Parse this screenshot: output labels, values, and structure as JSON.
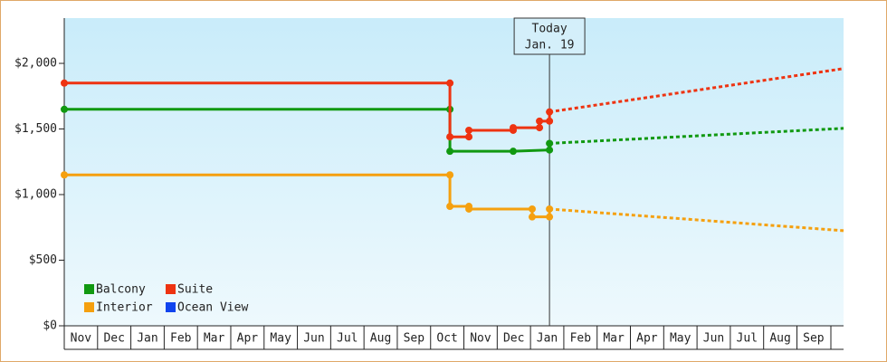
{
  "chart_data": {
    "type": "step-line",
    "annotation": {
      "x": 14.57,
      "lines": [
        "Today",
        "Jan. 19"
      ]
    },
    "xlim": [
      0,
      23.4
    ],
    "xticks": [
      {
        "value": 0,
        "label": "Nov"
      },
      {
        "value": 1,
        "label": "Dec"
      },
      {
        "value": 2,
        "label": "Jan"
      },
      {
        "value": 3,
        "label": "Feb"
      },
      {
        "value": 4,
        "label": "Mar"
      },
      {
        "value": 5,
        "label": "Apr"
      },
      {
        "value": 6,
        "label": "May"
      },
      {
        "value": 7,
        "label": "Jun"
      },
      {
        "value": 8,
        "label": "Jul"
      },
      {
        "value": 9,
        "label": "Aug"
      },
      {
        "value": 10,
        "label": "Sep"
      },
      {
        "value": 11,
        "label": "Oct"
      },
      {
        "value": 12,
        "label": "Nov"
      },
      {
        "value": 13,
        "label": "Dec"
      },
      {
        "value": 14,
        "label": "Jan"
      },
      {
        "value": 15,
        "label": "Feb"
      },
      {
        "value": 16,
        "label": "Mar"
      },
      {
        "value": 17,
        "label": "Apr"
      },
      {
        "value": 18,
        "label": "May"
      },
      {
        "value": 19,
        "label": "Jun"
      },
      {
        "value": 20,
        "label": "Jul"
      },
      {
        "value": 21,
        "label": "Aug"
      },
      {
        "value": 22,
        "label": "Sep"
      }
    ],
    "ylim": [
      0,
      2345
    ],
    "yticks": [
      {
        "value": 0,
        "label": "$0"
      },
      {
        "value": 500,
        "label": "$500"
      },
      {
        "value": 1000,
        "label": "$1,000"
      },
      {
        "value": 1500,
        "label": "$1,500"
      },
      {
        "value": 2000,
        "label": "$2,000"
      }
    ],
    "series": [
      {
        "name": "Balcony",
        "color": "#119911",
        "x": [
          0,
          11.58,
          11.58,
          13.48,
          14.57,
          14.57
        ],
        "values": [
          1650,
          1650,
          1330,
          1330,
          1340,
          1390
        ],
        "forecast": {
          "x": [
            14.57,
            23.4
          ],
          "values": [
            1390,
            1505
          ]
        }
      },
      {
        "name": "Suite",
        "color": "#ee3311",
        "x": [
          0,
          11.58,
          11.58,
          12.15,
          12.15,
          13.48,
          13.48,
          14.27,
          14.27,
          14.57,
          14.57
        ],
        "values": [
          1850,
          1850,
          1440,
          1440,
          1490,
          1490,
          1510,
          1510,
          1560,
          1560,
          1630
        ],
        "forecast": {
          "x": [
            14.57,
            23.4
          ],
          "values": [
            1630,
            1960
          ]
        }
      },
      {
        "name": "Interior",
        "color": "#f5a00f",
        "x": [
          0,
          11.58,
          11.58,
          12.15,
          12.15,
          14.05,
          14.05,
          14.57,
          14.57
        ],
        "values": [
          1150,
          1150,
          910,
          910,
          890,
          890,
          830,
          830,
          890
        ],
        "forecast": {
          "x": [
            14.57,
            23.4
          ],
          "values": [
            890,
            725
          ]
        }
      },
      {
        "name": "Ocean View",
        "color": "#1144ee",
        "x": [],
        "values": []
      }
    ]
  }
}
